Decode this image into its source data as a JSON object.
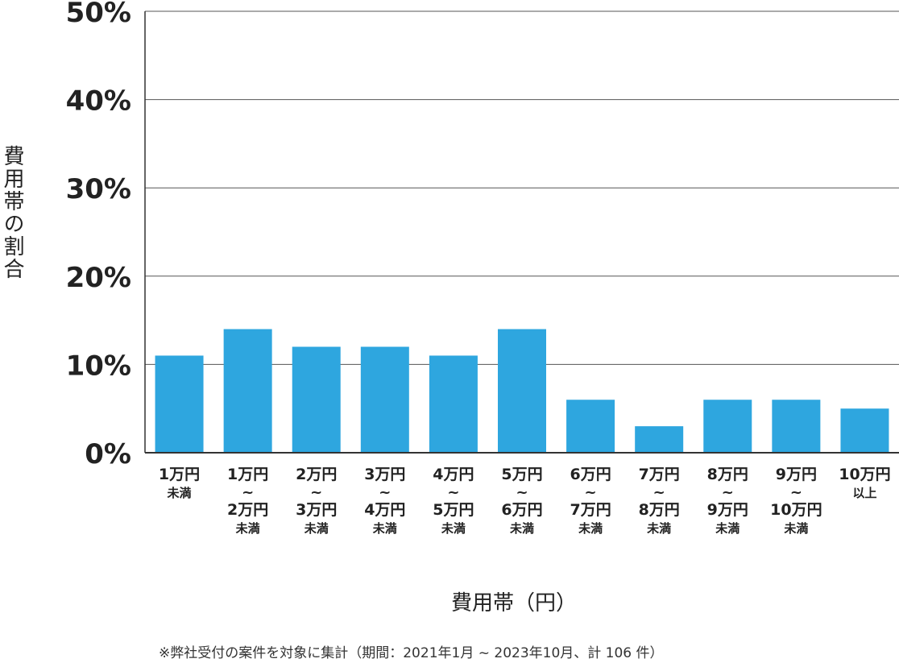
{
  "chart_data": {
    "type": "bar",
    "ylabel": "費用帯の割合",
    "xlabel": "費用帯（円）",
    "footnote": "※弊社受付の案件を対象に集計（期間：2021年1月 ~ 2023年10月、計 106 件）",
    "ylim": [
      0,
      50
    ],
    "yticks": [
      "0%",
      "10%",
      "20%",
      "30%",
      "40%",
      "50%"
    ],
    "grid": true,
    "bar_color": "#2ea6df",
    "categories": [
      [
        "1万円",
        "未満"
      ],
      [
        "1万円",
        "~",
        "2万円",
        "未満"
      ],
      [
        "2万円",
        "~",
        "3万円",
        "未満"
      ],
      [
        "3万円",
        "~",
        "4万円",
        "未満"
      ],
      [
        "4万円",
        "~",
        "5万円",
        "未満"
      ],
      [
        "5万円",
        "~",
        "6万円",
        "未満"
      ],
      [
        "6万円",
        "~",
        "7万円",
        "未満"
      ],
      [
        "7万円",
        "~",
        "8万円",
        "未満"
      ],
      [
        "8万円",
        "~",
        "9万円",
        "未満"
      ],
      [
        "9万円",
        "~",
        "10万円",
        "未満"
      ],
      [
        "10万円",
        "以上"
      ]
    ],
    "values": [
      11,
      14,
      12,
      12,
      11,
      14,
      6,
      3,
      6,
      6,
      5
    ]
  }
}
